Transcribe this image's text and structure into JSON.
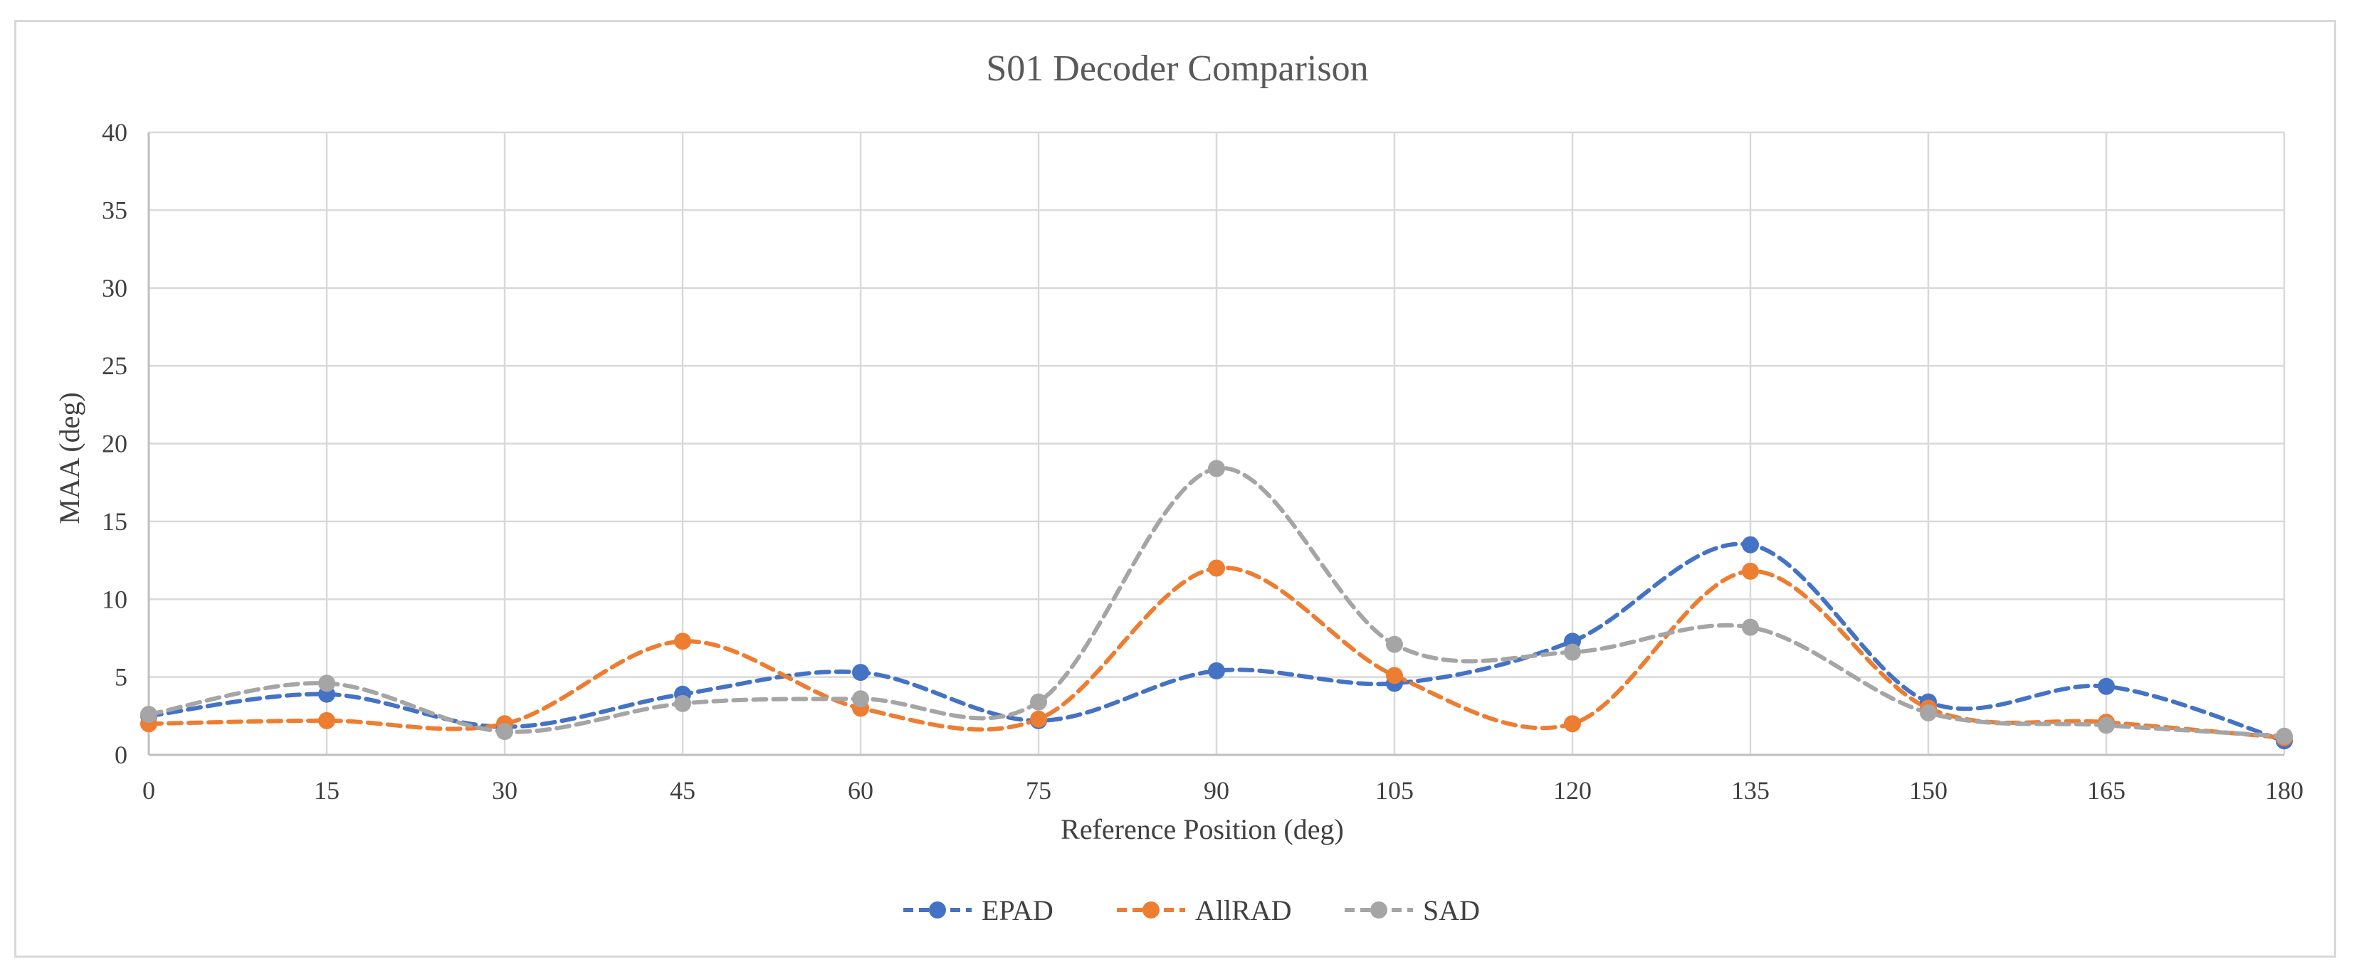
{
  "chart_data": {
    "type": "line",
    "title": "S01 Decoder Comparison",
    "xlabel": "Reference Position (deg)",
    "ylabel": "MAA (deg)",
    "x": [
      0,
      15,
      30,
      45,
      60,
      75,
      90,
      105,
      120,
      135,
      150,
      165,
      180
    ],
    "xlim": [
      0,
      180
    ],
    "ylim": [
      0,
      40
    ],
    "yticks": [
      0,
      5,
      10,
      15,
      20,
      25,
      30,
      35,
      40
    ],
    "grid": true,
    "legend_position": "bottom",
    "line_style": "dashed-smoothed",
    "series": [
      {
        "name": "EPAD",
        "color": "#4472C4",
        "values": [
          2.5,
          3.9,
          1.8,
          3.9,
          5.3,
          2.2,
          5.4,
          4.6,
          7.3,
          13.5,
          3.4,
          4.4,
          0.9
        ]
      },
      {
        "name": "AllRAD",
        "color": "#ED7D31",
        "values": [
          2.0,
          2.2,
          2.0,
          7.3,
          3.0,
          2.3,
          12.0,
          5.1,
          2.0,
          11.8,
          3.0,
          2.1,
          1.1
        ]
      },
      {
        "name": "SAD",
        "color": "#A5A5A5",
        "values": [
          2.6,
          4.6,
          1.5,
          3.3,
          3.6,
          3.4,
          18.4,
          7.1,
          6.6,
          8.2,
          2.7,
          1.9,
          1.2
        ]
      }
    ]
  }
}
